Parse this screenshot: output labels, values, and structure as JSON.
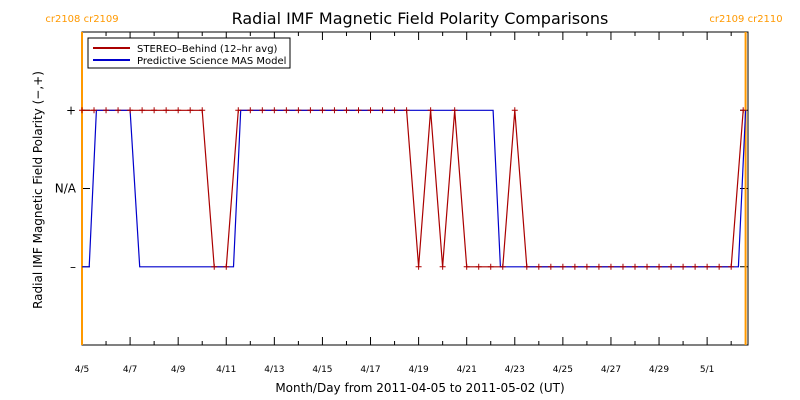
{
  "chart_data": {
    "type": "line",
    "title": "Radial IMF Magnetic Field Polarity Comparisons",
    "xlabel": "Month/Day from 2011-04-05 to 2011-05-02 (UT)",
    "ylabel": "Radial IMF Magnetic Field Polarity (−,+)",
    "xlim": [
      0,
      27.7
    ],
    "ylim": [
      -2.0,
      2.0
    ],
    "x_tick_labels": [
      "4/5",
      "4/7",
      "4/9",
      "4/11",
      "4/13",
      "4/15",
      "4/17",
      "4/19",
      "4/21",
      "4/23",
      "4/25",
      "4/27",
      "4/29",
      "5/1"
    ],
    "x_tick_days": [
      0,
      2,
      4,
      6,
      8,
      10,
      12,
      14,
      16,
      18,
      20,
      22,
      24,
      26
    ],
    "y_ticks": [
      {
        "value": 1,
        "label": "+"
      },
      {
        "value": 0,
        "label": "N/A"
      },
      {
        "value": -1,
        "label": "–"
      }
    ],
    "legend": {
      "placement": "top-left",
      "entries": [
        {
          "label": "STEREO–Behind (12–hr avg)",
          "color": "#aa0000"
        },
        {
          "label": "Predictive Science MAS Model",
          "color": "#0000cc"
        }
      ]
    },
    "rotations": [
      {
        "label": "cr2108  cr2109",
        "day": 0,
        "position": "top-left"
      },
      {
        "label": "cr2109  cr2110",
        "day": 27.6,
        "position": "top-right"
      }
    ],
    "rotation_color": "#ff9900",
    "series": [
      {
        "name": "STEREO–Behind (12–hr avg)",
        "color": "#aa0000",
        "marker": "+",
        "points": [
          [
            0.0,
            1
          ],
          [
            0.5,
            1
          ],
          [
            1.0,
            1
          ],
          [
            1.5,
            1
          ],
          [
            2.0,
            1
          ],
          [
            2.5,
            1
          ],
          [
            3.0,
            1
          ],
          [
            3.5,
            1
          ],
          [
            4.0,
            1
          ],
          [
            4.5,
            1
          ],
          [
            5.0,
            1
          ],
          [
            5.5,
            -1
          ],
          [
            6.0,
            -1
          ],
          [
            6.5,
            1
          ],
          [
            7.0,
            1
          ],
          [
            7.5,
            1
          ],
          [
            8.0,
            1
          ],
          [
            8.5,
            1
          ],
          [
            9.0,
            1
          ],
          [
            9.5,
            1
          ],
          [
            10.0,
            1
          ],
          [
            10.5,
            1
          ],
          [
            11.0,
            1
          ],
          [
            11.5,
            1
          ],
          [
            12.0,
            1
          ],
          [
            12.5,
            1
          ],
          [
            13.0,
            1
          ],
          [
            13.5,
            1
          ],
          [
            14.0,
            -1
          ],
          [
            14.5,
            1
          ],
          [
            15.0,
            -1
          ],
          [
            15.5,
            1
          ],
          [
            16.0,
            -1
          ],
          [
            16.5,
            -1
          ],
          [
            17.0,
            -1
          ],
          [
            17.5,
            -1
          ],
          [
            18.0,
            1
          ],
          [
            18.5,
            -1
          ],
          [
            19.0,
            -1
          ],
          [
            19.5,
            -1
          ],
          [
            20.0,
            -1
          ],
          [
            20.5,
            -1
          ],
          [
            21.0,
            -1
          ],
          [
            21.5,
            -1
          ],
          [
            22.0,
            -1
          ],
          [
            22.5,
            -1
          ],
          [
            23.0,
            -1
          ],
          [
            23.5,
            -1
          ],
          [
            24.0,
            -1
          ],
          [
            24.5,
            -1
          ],
          [
            25.0,
            -1
          ],
          [
            25.5,
            -1
          ],
          [
            26.0,
            -1
          ],
          [
            26.5,
            -1
          ],
          [
            27.0,
            -1
          ],
          [
            27.5,
            1
          ]
        ]
      },
      {
        "name": "Predictive Science MAS Model",
        "color": "#0000cc",
        "points": [
          [
            0.0,
            -1
          ],
          [
            0.3,
            -1
          ],
          [
            0.6,
            1
          ],
          [
            2.0,
            1
          ],
          [
            2.4,
            -1
          ],
          [
            6.3,
            -1
          ],
          [
            6.6,
            1
          ],
          [
            17.1,
            1
          ],
          [
            17.4,
            -1
          ],
          [
            27.3,
            -1
          ],
          [
            27.6,
            1
          ]
        ]
      }
    ]
  }
}
